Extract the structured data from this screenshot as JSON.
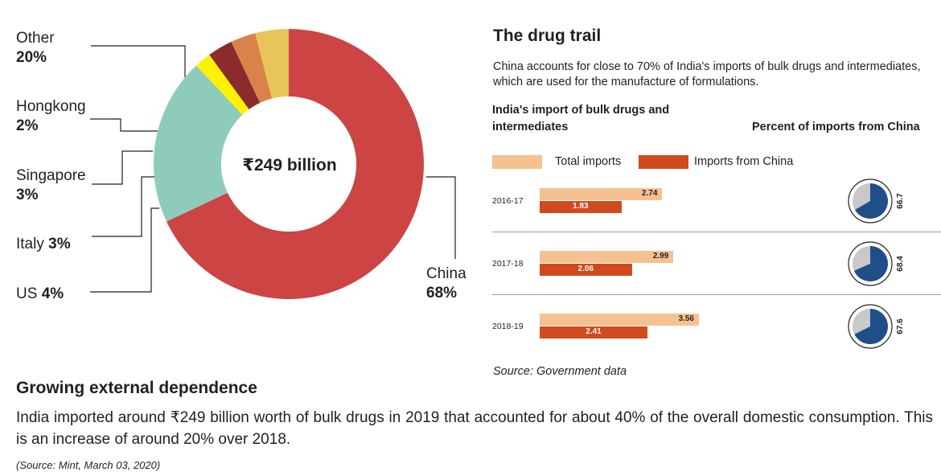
{
  "donut": {
    "center_label": "₹249 billion",
    "labels": [
      {
        "name": "Other",
        "value": "20%"
      },
      {
        "name": "Hongkong",
        "value": "2%"
      },
      {
        "name": "Singapore",
        "value": "3%"
      },
      {
        "name": "Italy",
        "value": "3%"
      },
      {
        "name": "US",
        "value": "4%"
      },
      {
        "name": "China",
        "value": "68%"
      }
    ]
  },
  "panel": {
    "title": "The drug trail",
    "subtitle": "China accounts for close to 70% of India's imports of bulk drugs and intermediates, which are used for the manufacture of formulations.",
    "left_header": "India's import of bulk drugs and intermediates",
    "right_header": "Percent of imports from China",
    "legend_total": "Total imports",
    "legend_china": "Imports from China",
    "source": "Source: Government data"
  },
  "chart_data": [
    {
      "type": "pie",
      "title": "₹249 billion",
      "categories": [
        "China",
        "Other",
        "Hongkong",
        "Singapore",
        "Italy",
        "US"
      ],
      "values": [
        68,
        20,
        2,
        3,
        3,
        4
      ],
      "colors": [
        "#cc4444",
        "#8fcbbb",
        "#fff200",
        "#8b2b2b",
        "#d9824a",
        "#e8c55a"
      ]
    },
    {
      "type": "bar",
      "title": "India's import of bulk drugs and intermediates",
      "categories": [
        "2016-17",
        "2017-18",
        "2018-19"
      ],
      "series": [
        {
          "name": "Total imports",
          "values": [
            2.74,
            2.99,
            3.56
          ],
          "color": "#f5c190"
        },
        {
          "name": "Imports from China",
          "values": [
            1.83,
            2.06,
            2.41
          ],
          "color": "#d04a1e"
        }
      ],
      "labels": {
        "total": [
          "2.74",
          "2.99",
          "3.56"
        ],
        "china": [
          "1.83",
          "2.06",
          "2.41"
        ]
      }
    },
    {
      "type": "pie",
      "title": "Percent of imports from China",
      "categories": [
        "2016-17",
        "2017-18",
        "2018-19"
      ],
      "values": [
        66.7,
        68.4,
        67.6
      ],
      "labels": [
        "66.7",
        "68.4",
        "67.6"
      ],
      "colors": {
        "china": "#1f4e89",
        "rest": "#c9c9c9"
      }
    }
  ],
  "article": {
    "heading": "Growing external dependence",
    "body": "India imported around ₹249 billion worth of bulk drugs in 2019 that accounted for about 40% of the overall domestic consumption. This is an increase of around 20% over 2018.",
    "source": "(Source: Mint, March 03, 2020)"
  }
}
